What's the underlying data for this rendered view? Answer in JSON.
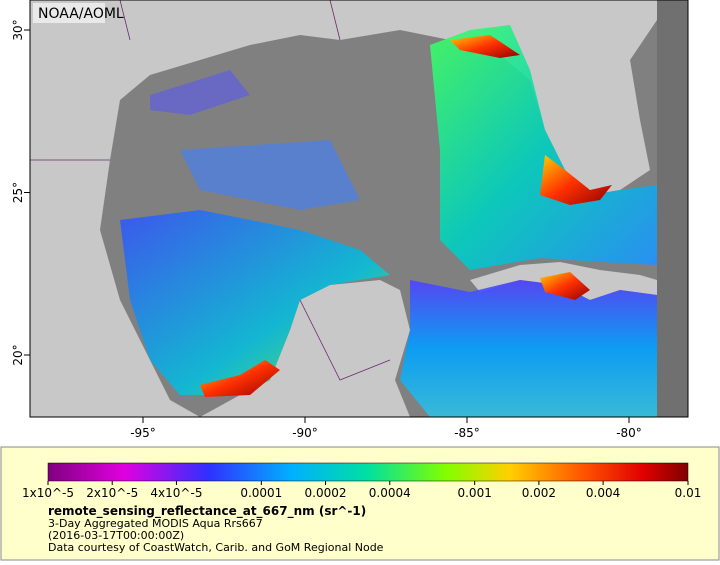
{
  "header": {
    "credit": "NOAA/AOML"
  },
  "map": {
    "lon_ticks": [
      {
        "value": -95,
        "label": "-95°"
      },
      {
        "value": -90,
        "label": "-90°"
      },
      {
        "value": -85,
        "label": "-85°"
      },
      {
        "value": -80,
        "label": "-80°"
      }
    ],
    "lat_ticks": [
      {
        "value": 20,
        "label": "20°"
      },
      {
        "value": 25,
        "label": "25°"
      },
      {
        "value": 30,
        "label": "30°"
      }
    ]
  },
  "legend": {
    "colorbar_ticks": [
      {
        "value": 1e-05,
        "label": "1x10^-5"
      },
      {
        "value": 2e-05,
        "label": "2x10^-5"
      },
      {
        "value": 4e-05,
        "label": "4x10^-5"
      },
      {
        "value": 0.0001,
        "label": "0.0001"
      },
      {
        "value": 0.0002,
        "label": "0.0002"
      },
      {
        "value": 0.0004,
        "label": "0.0004"
      },
      {
        "value": 0.001,
        "label": "0.001"
      },
      {
        "value": 0.002,
        "label": "0.002"
      },
      {
        "value": 0.004,
        "label": "0.004"
      },
      {
        "value": 0.01,
        "label": "0.01"
      }
    ],
    "variable": "remote_sensing_reflectance_at_667_nm (sr^-1)",
    "description": "3-Day Aggregated MODIS Aqua Rrs667",
    "time": "(2016-03-17T00:00:00Z)",
    "credit": "Data courtesy of CoastWatch, Carib. and GoM Regional Node"
  }
}
